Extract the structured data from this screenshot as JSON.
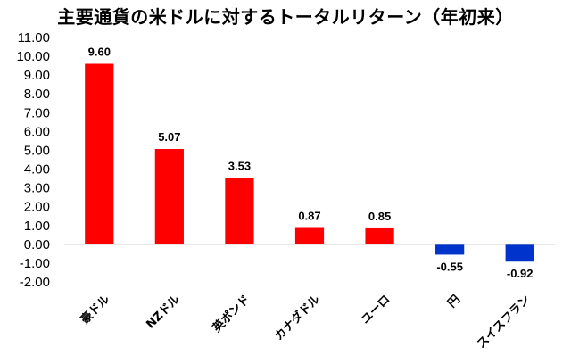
{
  "chart_data": {
    "type": "bar",
    "title": "主要通貨の米ドルに対するトータルリターン（年初来）",
    "categories": [
      "豪ドル",
      "NZドル",
      "英ポンド",
      "カナダドル",
      "ユーロ",
      "円",
      "スイスフラン"
    ],
    "values": [
      9.6,
      5.07,
      3.53,
      0.87,
      0.85,
      -0.55,
      -0.92
    ],
    "value_labels": [
      "9.60",
      "5.07",
      "3.53",
      "0.87",
      "0.85",
      "-0.55",
      "-0.92"
    ],
    "ylim": [
      -2.0,
      11.0
    ],
    "y_ticks": [
      "11.00",
      "10.00",
      "9.00",
      "8.00",
      "7.00",
      "6.00",
      "5.00",
      "4.00",
      "3.00",
      "2.00",
      "1.00",
      "0.00",
      "-1.00",
      "-2.00"
    ],
    "grid": false,
    "legend": "none",
    "colors": {
      "positive": "#ff0000",
      "negative": "#0033cc",
      "axis": "#bfbfbf"
    }
  }
}
